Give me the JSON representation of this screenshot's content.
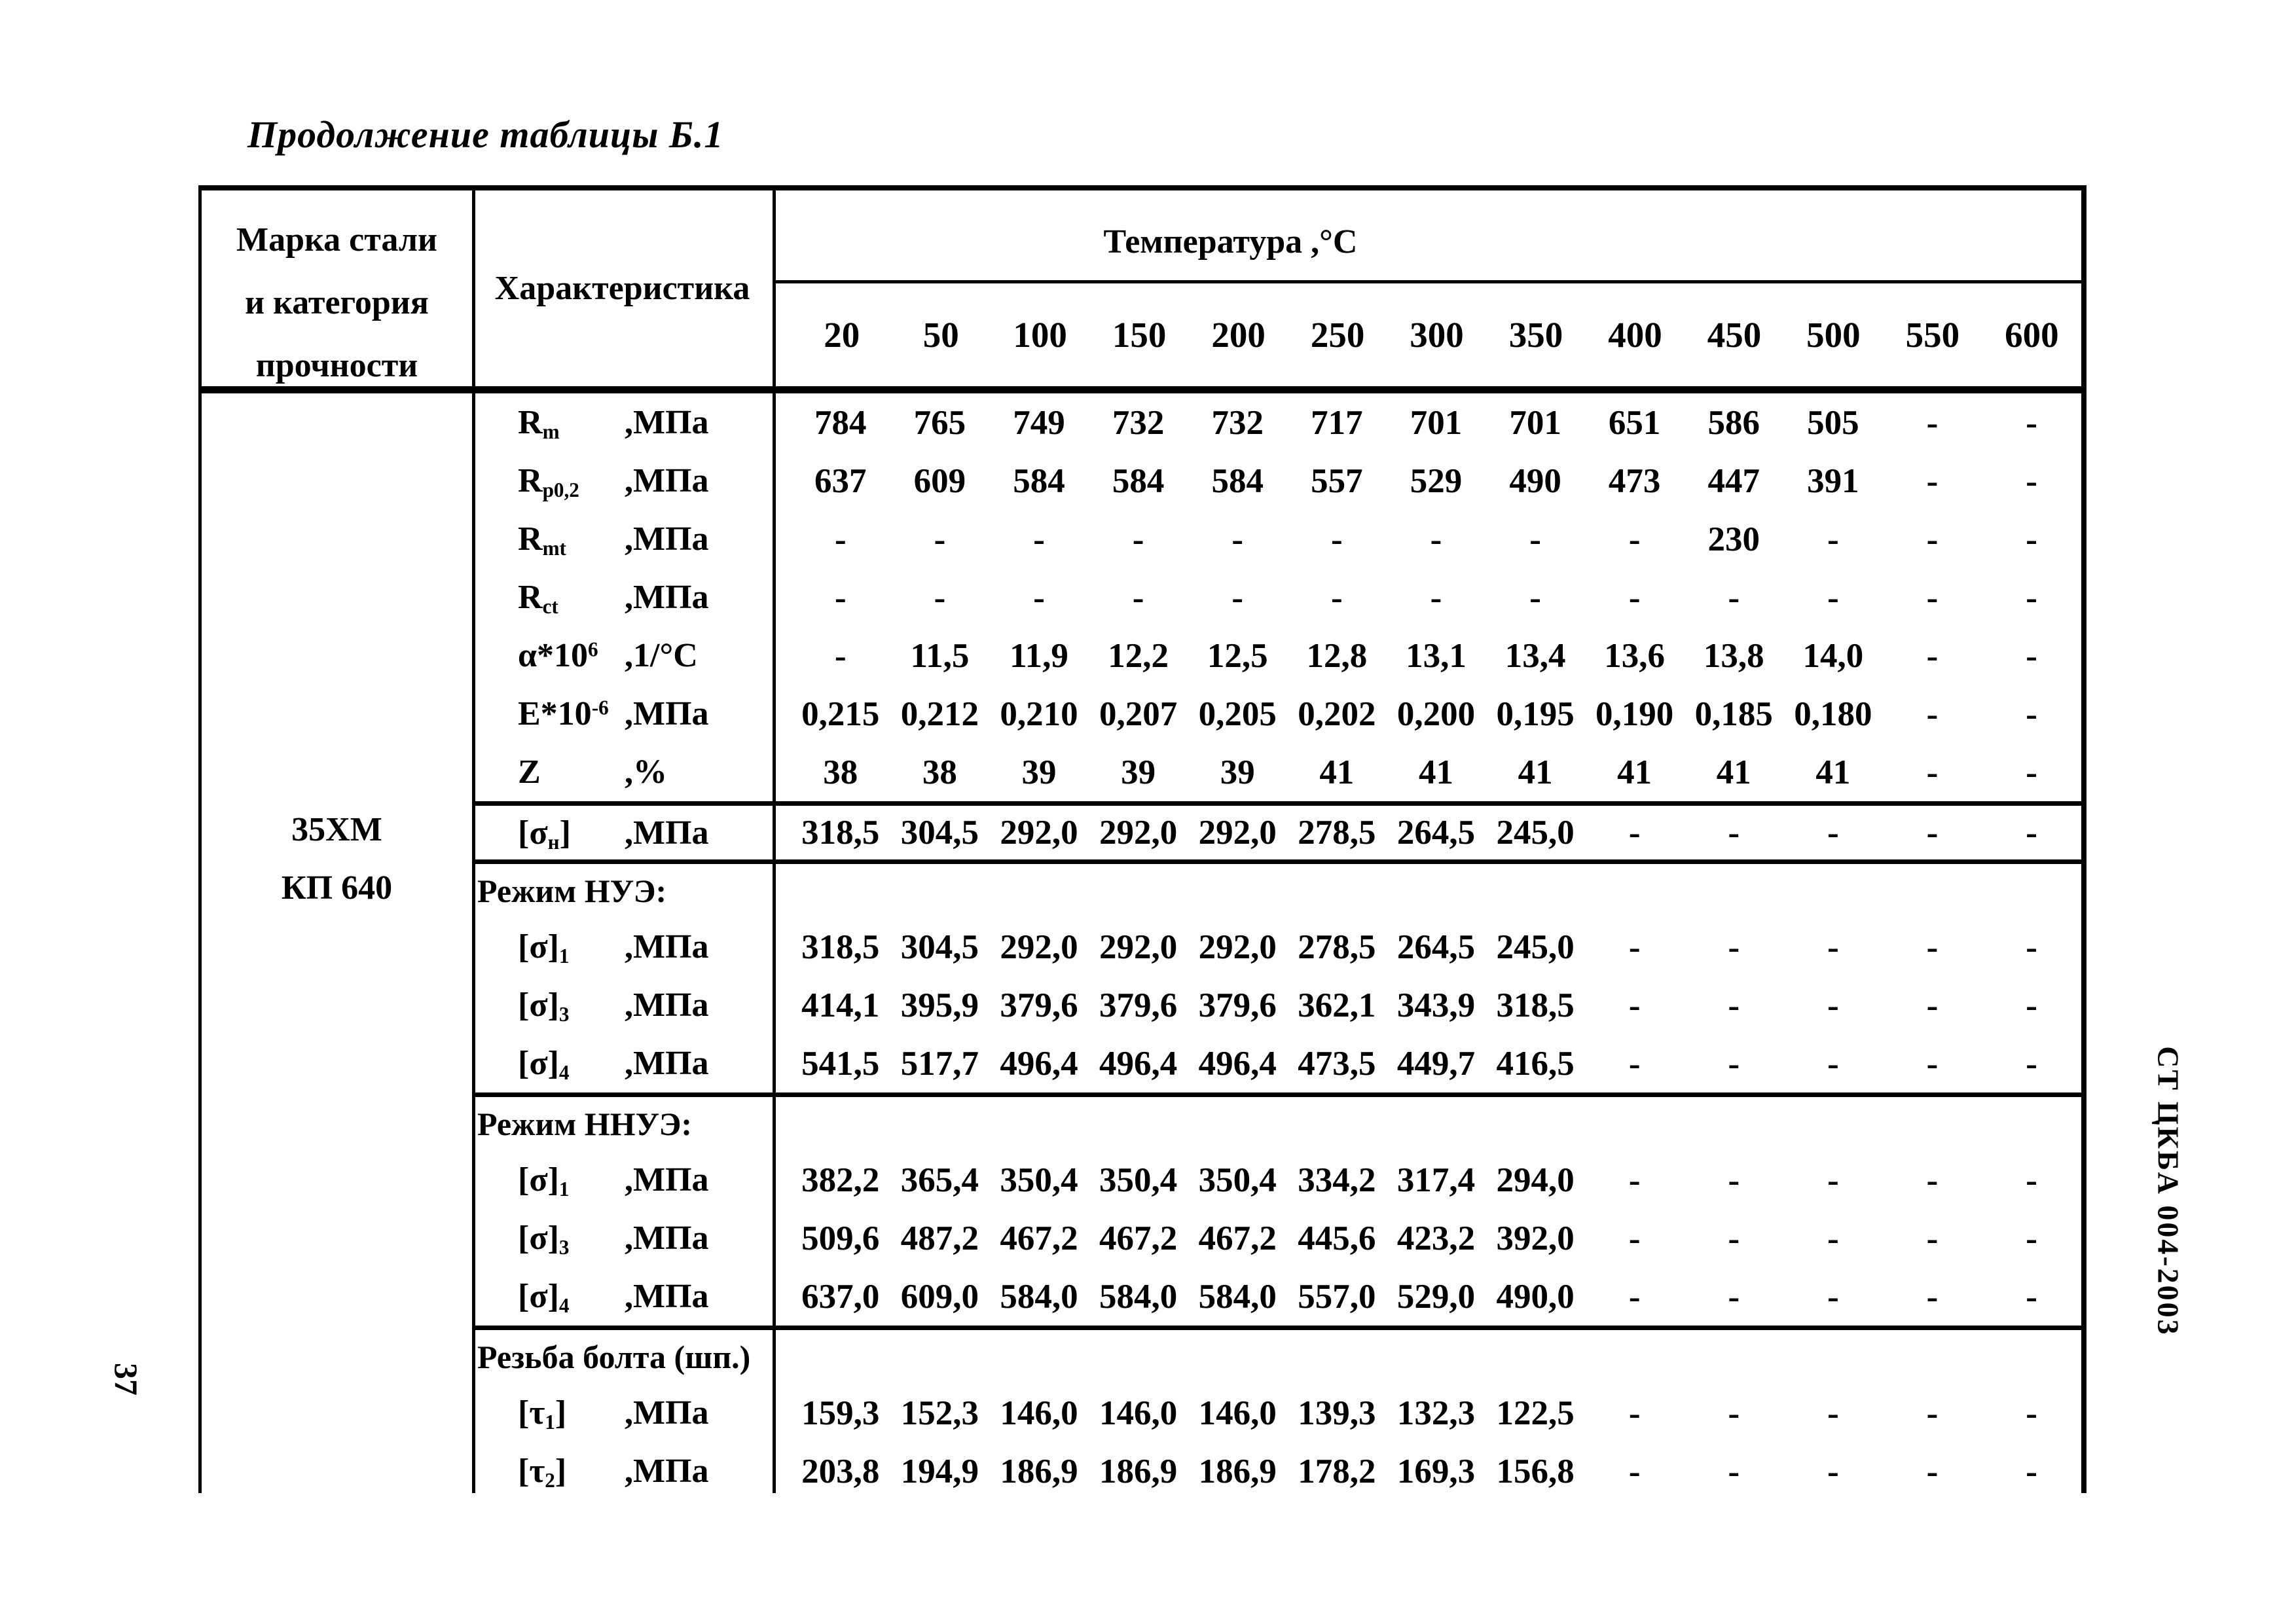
{
  "page": {
    "title": "Продолжение таблицы Б.1",
    "page_number": "37",
    "side_label": "СТ ЦКБА 004-2003"
  },
  "table": {
    "col1_header_lines": [
      "Марка стали",
      "и категория",
      "прочности"
    ],
    "col2_header": "Характеристика",
    "temp_title": "Температура ,°С",
    "temperatures": [
      "20",
      "50",
      "100",
      "150",
      "200",
      "250",
      "300",
      "350",
      "400",
      "450",
      "500",
      "550",
      "600"
    ],
    "steel_grade": "35ХМ",
    "steel_category": "КП 640",
    "rows": [
      {
        "kind": "data",
        "sym": "R<sub>m</sub>",
        "unit": ",МПа",
        "values": [
          "784",
          "765",
          "749",
          "732",
          "732",
          "717",
          "701",
          "701",
          "651",
          "586",
          "505",
          "-",
          "-"
        ]
      },
      {
        "kind": "data",
        "sym": "R<sub>p0,2</sub>",
        "unit": ",МПа",
        "values": [
          "637",
          "609",
          "584",
          "584",
          "584",
          "557",
          "529",
          "490",
          "473",
          "447",
          "391",
          "-",
          "-"
        ]
      },
      {
        "kind": "data",
        "sym": "R<sub>mt</sub>",
        "unit": ",МПа",
        "values": [
          "-",
          "-",
          "-",
          "-",
          "-",
          "-",
          "-",
          "-",
          "-",
          "230",
          "-",
          "-",
          "-"
        ]
      },
      {
        "kind": "data",
        "sym": "R<sub>ct</sub>",
        "unit": ",МПа",
        "values": [
          "-",
          "-",
          "-",
          "-",
          "-",
          "-",
          "-",
          "-",
          "-",
          "-",
          "-",
          "-",
          "-"
        ]
      },
      {
        "kind": "data",
        "sym": "α*10<sup>6</sup>",
        "unit": ",1/°С",
        "values": [
          "-",
          "11,5",
          "11,9",
          "12,2",
          "12,5",
          "12,8",
          "13,1",
          "13,4",
          "13,6",
          "13,8",
          "14,0",
          "-",
          "-"
        ]
      },
      {
        "kind": "data",
        "sym": "E*10<sup>-6</sup>",
        "unit": ",МПа",
        "values": [
          "0,215",
          "0,212",
          "0,210",
          "0,207",
          "0,205",
          "0,202",
          "0,200",
          "0,195",
          "0,190",
          "0,185",
          "0,180",
          "-",
          "-"
        ]
      },
      {
        "kind": "data",
        "sym": "Z",
        "unit": ",%",
        "values": [
          "38",
          "38",
          "39",
          "39",
          "39",
          "41",
          "41",
          "41",
          "41",
          "41",
          "41",
          "-",
          "-"
        ]
      },
      {
        "kind": "data",
        "rule": true,
        "sym": "[σ<sub>н</sub>]",
        "unit": ",МПа",
        "values": [
          "318,5",
          "304,5",
          "292,0",
          "292,0",
          "292,0",
          "278,5",
          "264,5",
          "245,0",
          "-",
          "-",
          "-",
          "-",
          "-"
        ]
      },
      {
        "kind": "section",
        "rule": true,
        "label": "Режим НУЭ:"
      },
      {
        "kind": "data",
        "sym": "[σ]<sub>1</sub>",
        "unit": ",МПа",
        "values": [
          "318,5",
          "304,5",
          "292,0",
          "292,0",
          "292,0",
          "278,5",
          "264,5",
          "245,0",
          "-",
          "-",
          "-",
          "-",
          "-"
        ]
      },
      {
        "kind": "data",
        "sym": "[σ]<sub>3</sub>",
        "unit": ",МПа",
        "values": [
          "414,1",
          "395,9",
          "379,6",
          "379,6",
          "379,6",
          "362,1",
          "343,9",
          "318,5",
          "-",
          "-",
          "-",
          "-",
          "-"
        ]
      },
      {
        "kind": "data",
        "sym": "[σ]<sub>4</sub>",
        "unit": ",МПа",
        "values": [
          "541,5",
          "517,7",
          "496,4",
          "496,4",
          "496,4",
          "473,5",
          "449,7",
          "416,5",
          "-",
          "-",
          "-",
          "-",
          "-"
        ]
      },
      {
        "kind": "section",
        "rule": true,
        "label": "Режим ННУЭ:"
      },
      {
        "kind": "data",
        "sym": "[σ]<sub>1</sub>",
        "unit": ",МПа",
        "values": [
          "382,2",
          "365,4",
          "350,4",
          "350,4",
          "350,4",
          "334,2",
          "317,4",
          "294,0",
          "-",
          "-",
          "-",
          "-",
          "-"
        ]
      },
      {
        "kind": "data",
        "sym": "[σ]<sub>3</sub>",
        "unit": ",МПа",
        "values": [
          "509,6",
          "487,2",
          "467,2",
          "467,2",
          "467,2",
          "445,6",
          "423,2",
          "392,0",
          "-",
          "-",
          "-",
          "-",
          "-"
        ]
      },
      {
        "kind": "data",
        "sym": "[σ]<sub>4</sub>",
        "unit": ",МПа",
        "values": [
          "637,0",
          "609,0",
          "584,0",
          "584,0",
          "584,0",
          "557,0",
          "529,0",
          "490,0",
          "-",
          "-",
          "-",
          "-",
          "-"
        ]
      },
      {
        "kind": "section",
        "rule": true,
        "label": "Резьба болта (шп.)"
      },
      {
        "kind": "data",
        "sym": "[τ<sub>1</sub>]",
        "unit": ",МПа",
        "values": [
          "159,3",
          "152,3",
          "146,0",
          "146,0",
          "146,0",
          "139,3",
          "132,3",
          "122,5",
          "-",
          "-",
          "-",
          "-",
          "-"
        ]
      },
      {
        "kind": "data",
        "sym": "[τ<sub>2</sub>]",
        "unit": ",МПа",
        "values": [
          "203,8",
          "194,9",
          "186,9",
          "186,9",
          "186,9",
          "178,2",
          "169,3",
          "156,8",
          "-",
          "-",
          "-",
          "-",
          "-"
        ]
      }
    ]
  }
}
